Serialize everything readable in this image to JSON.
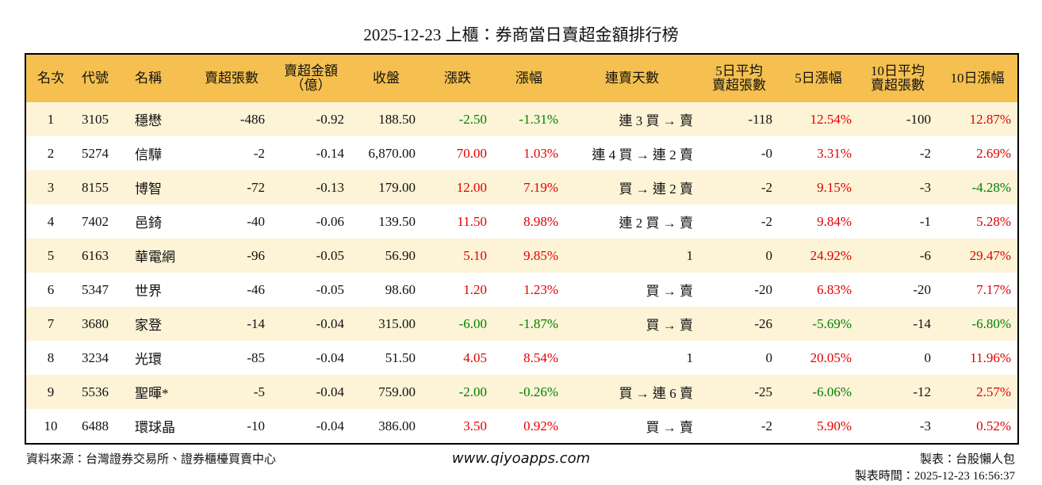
{
  "title": "2025-12-23 上櫃：券商當日賣超金額排行榜",
  "table": {
    "header": [
      [
        "名次"
      ],
      [
        "代號"
      ],
      [
        "名稱"
      ],
      [
        "賣超張數"
      ],
      [
        "賣超金額",
        "（億）"
      ],
      [
        "收盤"
      ],
      [
        "漲跌"
      ],
      [
        "漲幅"
      ],
      [
        "連賣天數"
      ],
      [
        "5日平均",
        "賣超張數"
      ],
      [
        "5日漲幅"
      ],
      [
        "10日平均",
        "賣超張數"
      ],
      [
        "10日漲幅"
      ]
    ],
    "rows": [
      [
        "1",
        "3105",
        "穩懋",
        "-486",
        "-0.92",
        "188.50",
        "-2.50",
        "-1.31%",
        "連 3 買 → 賣",
        "-118",
        "12.54%",
        "-100",
        "12.87%"
      ],
      [
        "2",
        "5274",
        "信驊",
        "-2",
        "-0.14",
        "6,870.00",
        "70.00",
        "1.03%",
        "連 4 買 → 連 2 賣",
        "-0",
        "3.31%",
        "-2",
        "2.69%"
      ],
      [
        "3",
        "8155",
        "博智",
        "-72",
        "-0.13",
        "179.00",
        "12.00",
        "7.19%",
        "買 → 連 2 賣",
        "-2",
        "9.15%",
        "-3",
        "-4.28%"
      ],
      [
        "4",
        "7402",
        "邑錡",
        "-40",
        "-0.06",
        "139.50",
        "11.50",
        "8.98%",
        "連 2 買 → 賣",
        "-2",
        "9.84%",
        "-1",
        "5.28%"
      ],
      [
        "5",
        "6163",
        "華電網",
        "-96",
        "-0.05",
        "56.90",
        "5.10",
        "9.85%",
        "1",
        "0",
        "24.92%",
        "-6",
        "29.47%"
      ],
      [
        "6",
        "5347",
        "世界",
        "-46",
        "-0.05",
        "98.60",
        "1.20",
        "1.23%",
        "買 → 賣",
        "-20",
        "6.83%",
        "-20",
        "7.17%"
      ],
      [
        "7",
        "3680",
        "家登",
        "-14",
        "-0.04",
        "315.00",
        "-6.00",
        "-1.87%",
        "買 → 賣",
        "-26",
        "-5.69%",
        "-14",
        "-6.80%"
      ],
      [
        "8",
        "3234",
        "光環",
        "-85",
        "-0.04",
        "51.50",
        "4.05",
        "8.54%",
        "1",
        "0",
        "20.05%",
        "0",
        "11.96%"
      ],
      [
        "9",
        "5536",
        "聖暉*",
        "-5",
        "-0.04",
        "759.00",
        "-2.00",
        "-0.26%",
        "買 → 連 6 賣",
        "-25",
        "-6.06%",
        "-12",
        "2.57%"
      ],
      [
        "10",
        "6488",
        "環球晶",
        "-10",
        "-0.04",
        "386.00",
        "3.50",
        "0.92%",
        "買 → 賣",
        "-2",
        "5.90%",
        "-3",
        "0.52%"
      ]
    ]
  },
  "footer": {
    "source": "資料來源：台灣證券交易所、證券櫃檯買賣中心",
    "site": "www.qiyoapps.com",
    "maker": "製表：台股懶人包",
    "time": "製表時間：2025-12-23 16:56:37"
  }
}
